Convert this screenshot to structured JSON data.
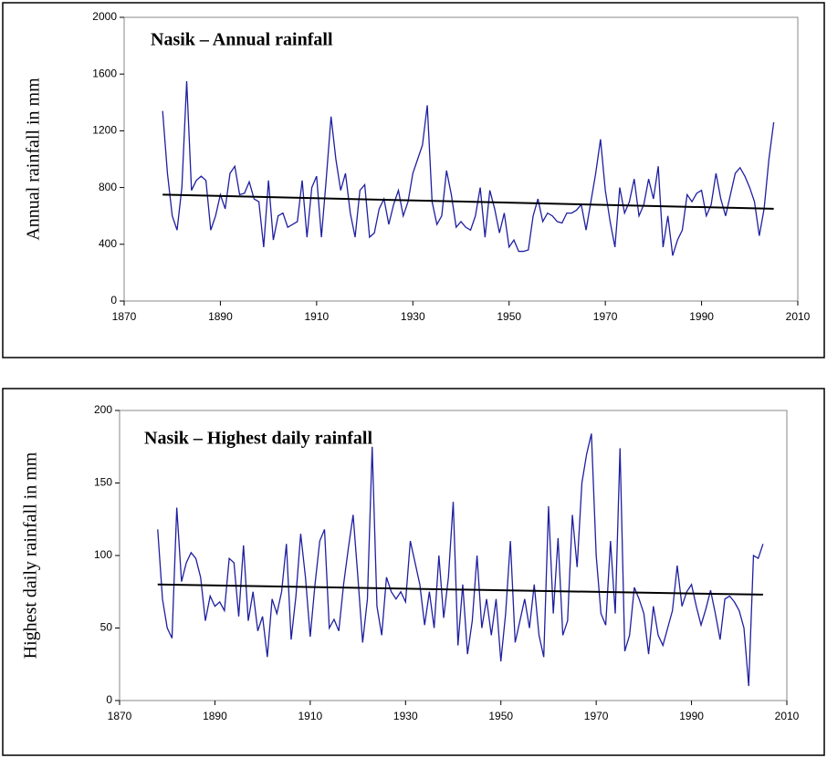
{
  "chart_data": [
    {
      "type": "line",
      "title": "Nasik –  Annual rainfall",
      "ylabel": "Annual rainfall in mm",
      "xlim": [
        1870,
        2010
      ],
      "xticks": [
        1870,
        1890,
        1910,
        1930,
        1950,
        1970,
        1990,
        2010
      ],
      "ylim": [
        0,
        2000
      ],
      "yticks": [
        0,
        400,
        800,
        1200,
        1600,
        2000
      ],
      "x": [
        1878,
        1879,
        1880,
        1881,
        1882,
        1883,
        1884,
        1885,
        1886,
        1887,
        1888,
        1889,
        1890,
        1891,
        1892,
        1893,
        1894,
        1895,
        1896,
        1897,
        1898,
        1899,
        1900,
        1901,
        1902,
        1903,
        1904,
        1905,
        1906,
        1907,
        1908,
        1909,
        1910,
        1911,
        1912,
        1913,
        1914,
        1915,
        1916,
        1917,
        1918,
        1919,
        1920,
        1921,
        1922,
        1923,
        1924,
        1925,
        1926,
        1927,
        1928,
        1929,
        1930,
        1931,
        1932,
        1933,
        1934,
        1935,
        1936,
        1937,
        1938,
        1939,
        1940,
        1941,
        1942,
        1943,
        1944,
        1945,
        1946,
        1947,
        1948,
        1949,
        1950,
        1951,
        1952,
        1953,
        1954,
        1955,
        1956,
        1957,
        1958,
        1959,
        1960,
        1961,
        1962,
        1963,
        1964,
        1965,
        1966,
        1967,
        1968,
        1969,
        1970,
        1971,
        1972,
        1973,
        1974,
        1975,
        1976,
        1977,
        1978,
        1979,
        1980,
        1981,
        1982,
        1983,
        1984,
        1985,
        1986,
        1987,
        1988,
        1989,
        1990,
        1991,
        1992,
        1993,
        1994,
        1995,
        1996,
        1997,
        1998,
        1999,
        2000,
        2001,
        2002,
        2003,
        2004,
        2005
      ],
      "series": [
        {
          "color": "#1f1fa0",
          "values": [
            1340,
            900,
            600,
            500,
            800,
            1550,
            780,
            850,
            880,
            850,
            500,
            600,
            750,
            650,
            900,
            950,
            750,
            760,
            840,
            720,
            700,
            380,
            850,
            430,
            600,
            620,
            520,
            540,
            560,
            850,
            450,
            800,
            880,
            450,
            860,
            1300,
            1000,
            780,
            900,
            620,
            450,
            780,
            820,
            450,
            480,
            650,
            720,
            540,
            680,
            780,
            600,
            700,
            900,
            1000,
            1100,
            1380,
            700,
            540,
            600,
            920,
            750,
            520,
            560,
            520,
            500,
            600,
            800,
            450,
            780,
            650,
            480,
            620,
            380,
            430,
            350,
            350,
            360,
            600,
            720,
            560,
            620,
            600,
            560,
            550,
            620,
            620,
            640,
            680,
            500,
            700,
            900,
            1140,
            780,
            560,
            380,
            800,
            620,
            700,
            860,
            600,
            680,
            860,
            720,
            950,
            380,
            600,
            320,
            430,
            500,
            750,
            700,
            760,
            780,
            600,
            680,
            900,
            720,
            600,
            750,
            900,
            940,
            880,
            800,
            700,
            460,
            650,
            1000,
            1260
          ]
        }
      ],
      "trend": {
        "color": "#000000",
        "x": [
          1878,
          2005
        ],
        "values": [
          750,
          650
        ]
      }
    },
    {
      "type": "line",
      "title": "Nasik – Highest daily rainfall",
      "ylabel": "Highest daily rainfall in mm",
      "xlim": [
        1870,
        2010
      ],
      "xticks": [
        1870,
        1890,
        1910,
        1930,
        1950,
        1970,
        1990,
        2010
      ],
      "ylim": [
        0,
        200
      ],
      "yticks": [
        0,
        50,
        100,
        150,
        200
      ],
      "x": [
        1878,
        1879,
        1880,
        1881,
        1882,
        1883,
        1884,
        1885,
        1886,
        1887,
        1888,
        1889,
        1890,
        1891,
        1892,
        1893,
        1894,
        1895,
        1896,
        1897,
        1898,
        1899,
        1900,
        1901,
        1902,
        1903,
        1904,
        1905,
        1906,
        1907,
        1908,
        1909,
        1910,
        1911,
        1912,
        1913,
        1914,
        1915,
        1916,
        1917,
        1918,
        1919,
        1920,
        1921,
        1922,
        1923,
        1924,
        1925,
        1926,
        1927,
        1928,
        1929,
        1930,
        1931,
        1932,
        1933,
        1934,
        1935,
        1936,
        1937,
        1938,
        1939,
        1940,
        1941,
        1942,
        1943,
        1944,
        1945,
        1946,
        1947,
        1948,
        1949,
        1950,
        1951,
        1952,
        1953,
        1954,
        1955,
        1956,
        1957,
        1958,
        1959,
        1960,
        1961,
        1962,
        1963,
        1964,
        1965,
        1966,
        1967,
        1968,
        1969,
        1970,
        1971,
        1972,
        1973,
        1974,
        1975,
        1976,
        1977,
        1978,
        1979,
        1980,
        1981,
        1982,
        1983,
        1984,
        1985,
        1986,
        1987,
        1988,
        1989,
        1990,
        1991,
        1992,
        1993,
        1994,
        1995,
        1996,
        1997,
        1998,
        1999,
        2000,
        2001,
        2002,
        2003,
        2004,
        2005
      ],
      "series": [
        {
          "color": "#1f1fa0",
          "values": [
            118,
            70,
            50,
            43,
            133,
            82,
            95,
            102,
            98,
            85,
            55,
            72,
            65,
            68,
            62,
            98,
            95,
            58,
            107,
            55,
            75,
            48,
            58,
            30,
            70,
            60,
            75,
            108,
            42,
            72,
            115,
            85,
            44,
            80,
            110,
            118,
            50,
            56,
            48,
            80,
            105,
            128,
            85,
            40,
            70,
            175,
            65,
            45,
            85,
            75,
            70,
            75,
            68,
            110,
            95,
            80,
            52,
            75,
            50,
            100,
            57,
            85,
            137,
            38,
            80,
            32,
            55,
            100,
            50,
            70,
            45,
            70,
            27,
            60,
            110,
            40,
            55,
            70,
            50,
            80,
            45,
            30,
            134,
            60,
            112,
            45,
            55,
            128,
            92,
            150,
            170,
            184,
            100,
            60,
            52,
            110,
            60,
            174,
            34,
            45,
            78,
            70,
            60,
            32,
            65,
            45,
            38,
            50,
            62,
            93,
            65,
            75,
            80,
            65,
            52,
            63,
            76,
            60,
            42,
            70,
            72,
            68,
            62,
            50,
            10,
            100,
            98,
            108
          ]
        }
      ],
      "trend": {
        "color": "#000000",
        "x": [
          1878,
          2005
        ],
        "values": [
          80,
          73
        ]
      }
    }
  ]
}
